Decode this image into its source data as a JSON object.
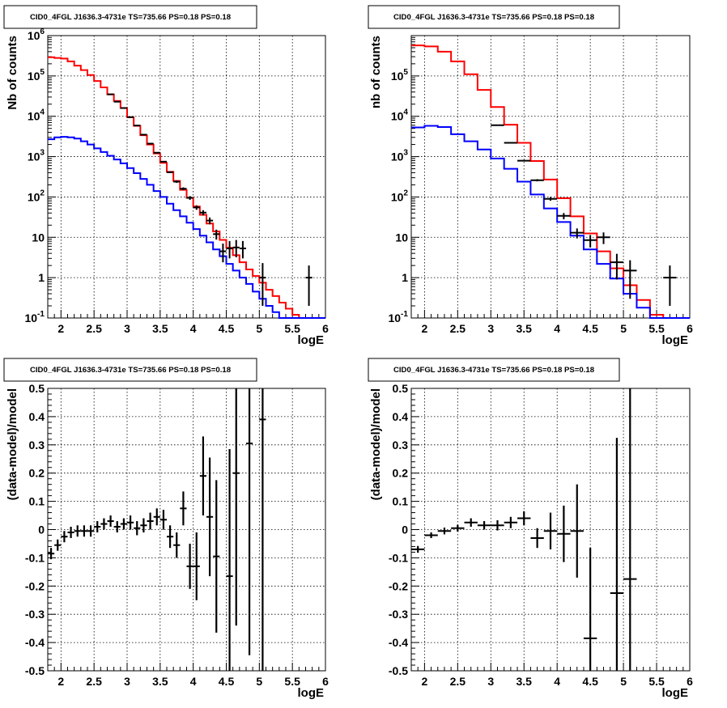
{
  "chart_data": [
    {
      "type": "histogram",
      "title": "CID0_4FGL J1636.3-4731e TS=735.66 PS=0.18 PS=0.18",
      "xlabel": "logE",
      "ylabel": "Nb of counts",
      "xlim": [
        1.8,
        6.0
      ],
      "ylim": [
        0.1,
        1000000
      ],
      "y_scale": "log",
      "grid": true,
      "x_ticks": [
        "2",
        "2.5",
        "3",
        "3.5",
        "4",
        "4.5",
        "5",
        "5.5",
        "6"
      ],
      "y_ticks": [
        "10^-1",
        "1",
        "10",
        "10^2",
        "10^3",
        "10^4",
        "10^5",
        "10^6"
      ],
      "bin_width": 0.1,
      "series": [
        {
          "color": "#ff0000",
          "x_edges": [
            1.8,
            1.9,
            2.0,
            2.1,
            2.2,
            2.3,
            2.4,
            2.5,
            2.6,
            2.7,
            2.8,
            2.9,
            3.0,
            3.1,
            3.2,
            3.3,
            3.4,
            3.5,
            3.6,
            3.7,
            3.8,
            3.9,
            4.0,
            4.1,
            4.2,
            4.3,
            4.4,
            4.5,
            4.6,
            4.7,
            4.8,
            4.9,
            5.0,
            5.1,
            5.2,
            5.3,
            5.4,
            5.5,
            5.6,
            5.7,
            5.8,
            5.9,
            6.0
          ],
          "values": [
            290000,
            280000,
            270000,
            230000,
            180000,
            140000,
            105000,
            75000,
            52000,
            35000,
            24000,
            16000,
            9500,
            5800,
            3400,
            2000,
            1200,
            700,
            420,
            250,
            150,
            95,
            58,
            36,
            22,
            14,
            8.6,
            5.5,
            3.6,
            2.4,
            1.6,
            1.1,
            0.75,
            0.5,
            0.35,
            0.24,
            0.17,
            0.12,
            0.1,
            0.1,
            0.1,
            0.1
          ]
        },
        {
          "color": "#0000ff",
          "x_edges": [
            1.8,
            1.9,
            2.0,
            2.1,
            2.2,
            2.3,
            2.4,
            2.5,
            2.6,
            2.7,
            2.8,
            2.9,
            3.0,
            3.1,
            3.2,
            3.3,
            3.4,
            3.5,
            3.6,
            3.7,
            3.8,
            3.9,
            4.0,
            4.1,
            4.2,
            4.3,
            4.4,
            4.5,
            4.6,
            4.7,
            4.8,
            4.9,
            5.0,
            5.1,
            5.2,
            5.3,
            5.4,
            5.5,
            5.6,
            5.7,
            5.8,
            5.9,
            6.0
          ],
          "values": [
            2700,
            3000,
            3100,
            3000,
            2800,
            2400,
            2000,
            1600,
            1300,
            1050,
            850,
            680,
            520,
            390,
            280,
            200,
            140,
            100,
            68,
            47,
            33,
            23,
            16,
            11,
            7.5,
            5.0,
            3.4,
            2.2,
            1.5,
            1.0,
            0.7,
            0.45,
            0.3,
            0.2,
            0.14,
            0.1,
            0.1,
            0.1,
            0.1,
            0.1,
            0.1,
            0.1
          ]
        },
        {
          "type": "points",
          "color": "#000000",
          "x": [
            2.75,
            2.85,
            2.95,
            3.05,
            3.15,
            3.25,
            3.35,
            3.45,
            3.55,
            3.65,
            3.75,
            3.85,
            3.95,
            4.05,
            4.15,
            4.25,
            4.35,
            4.45,
            4.55,
            4.65,
            4.75,
            5.05,
            5.75
          ],
          "y": [
            35000,
            23000,
            16000,
            9500,
            5900,
            3500,
            2100,
            1250,
            750,
            410,
            240,
            160,
            95,
            55,
            41,
            26,
            12,
            4.5,
            5.3,
            5.6,
            5.3,
            1.0,
            1.0
          ],
          "y_err_low": [
            200,
            160,
            130,
            100,
            80,
            60,
            45,
            35,
            27,
            20,
            16,
            13,
            10,
            7,
            6,
            5,
            3.2,
            2.1,
            2.3,
            2.4,
            2.3,
            0.8,
            0.8
          ],
          "y_err_high": [
            200,
            160,
            130,
            100,
            80,
            60,
            45,
            35,
            27,
            20,
            16,
            13,
            10,
            7,
            6,
            5,
            3.5,
            2.5,
            2.8,
            3.0,
            2.8,
            1.3,
            1.0
          ]
        }
      ]
    },
    {
      "type": "histogram",
      "title": "CID0_4FGL J1636.3-4731e TS=735.66 PS=0.18 PS=0.18",
      "xlabel": "logE",
      "ylabel": "nb of counts",
      "xlim": [
        1.8,
        6.0
      ],
      "ylim": [
        0.1,
        1000000
      ],
      "y_scale": "log",
      "grid": true,
      "x_ticks": [
        "2",
        "2.5",
        "3",
        "3.5",
        "4",
        "4.5",
        "5",
        "5.5",
        "6"
      ],
      "y_ticks": [
        "10^-1",
        "1",
        "10",
        "10^2",
        "10^3",
        "10^4",
        "10^5"
      ],
      "bin_width": 0.2,
      "series": [
        {
          "color": "#ff0000",
          "x_edges": [
            1.8,
            2.0,
            2.2,
            2.4,
            2.6,
            2.8,
            3.0,
            3.2,
            3.4,
            3.6,
            3.8,
            4.0,
            4.2,
            4.4,
            4.6,
            4.8,
            5.0,
            5.2,
            5.4,
            5.6,
            5.8,
            6.0
          ],
          "values": [
            570000,
            540000,
            400000,
            230000,
            110000,
            45000,
            17000,
            6200,
            2200,
            780,
            270,
            93,
            33,
            12.5,
            4.5,
            1.7,
            0.65,
            0.28,
            0.12,
            0.1,
            0.1
          ]
        },
        {
          "color": "#0000ff",
          "x_edges": [
            1.8,
            2.0,
            2.2,
            2.4,
            2.6,
            2.8,
            3.0,
            3.2,
            3.4,
            3.6,
            3.8,
            4.0,
            4.2,
            4.4,
            4.6,
            4.8,
            5.0,
            5.2,
            5.4,
            5.6,
            5.8,
            6.0
          ],
          "values": [
            5300,
            5800,
            5400,
            3600,
            2400,
            1500,
            900,
            500,
            240,
            115,
            52,
            24,
            11,
            5.0,
            2.2,
            0.95,
            0.4,
            0.18,
            0.1,
            0.1,
            0.1
          ]
        },
        {
          "type": "points",
          "color": "#000000",
          "x": [
            3.1,
            3.3,
            3.5,
            3.7,
            3.9,
            4.1,
            4.3,
            4.5,
            4.7,
            4.9,
            5.1,
            5.7
          ],
          "y": [
            6000,
            2200,
            790,
            260,
            90,
            34,
            13,
            8.5,
            10,
            2.4,
            1.5,
            1.0
          ],
          "y_err_low": [
            80,
            47,
            28,
            16,
            9,
            6,
            3.6,
            2.9,
            3.2,
            1.5,
            1.2,
            0.8
          ],
          "y_err_high": [
            80,
            47,
            28,
            16,
            9,
            6,
            3.6,
            2.9,
            3.2,
            1.5,
            1.2,
            1.0
          ]
        }
      ]
    },
    {
      "type": "scatter",
      "title": "CID0_4FGL J1636.3-4731e TS=735.66 PS=0.18 PS=0.18",
      "xlabel": "logE",
      "ylabel": "(data-model)/model",
      "xlim": [
        1.8,
        6.0
      ],
      "ylim": [
        -0.5,
        0.5
      ],
      "grid": true,
      "x_ticks": [
        "2",
        "2.5",
        "3",
        "3.5",
        "4",
        "4.5",
        "5",
        "5.5",
        "6"
      ],
      "y_ticks": [
        "-0.5",
        "-0.4",
        "-0.3",
        "-0.2",
        "-0.1",
        "0",
        "0.1",
        "0.2",
        "0.3",
        "0.4",
        "0.5"
      ],
      "x_halfwidth": 0.05,
      "x": [
        1.85,
        1.95,
        2.05,
        2.15,
        2.25,
        2.35,
        2.45,
        2.55,
        2.65,
        2.75,
        2.85,
        2.95,
        3.05,
        3.15,
        3.25,
        3.35,
        3.45,
        3.55,
        3.65,
        3.75,
        3.85,
        3.95,
        4.05,
        4.15,
        4.25,
        4.35,
        4.55,
        4.65,
        4.85,
        5.05
      ],
      "y": [
        -0.085,
        -0.055,
        -0.025,
        -0.01,
        -0.005,
        -0.005,
        -0.005,
        0.01,
        0.02,
        0.03,
        0.01,
        0.02,
        0.025,
        0.005,
        0.015,
        0.03,
        0.045,
        0.035,
        -0.025,
        -0.055,
        0.075,
        -0.13,
        -0.13,
        0.19,
        0.045,
        -0.095,
        -0.165,
        0.2,
        0.305,
        0.39
      ],
      "y_err": [
        0.02,
        0.02,
        0.02,
        0.02,
        0.02,
        0.02,
        0.02,
        0.02,
        0.02,
        0.02,
        0.02,
        0.02,
        0.025,
        0.025,
        0.025,
        0.03,
        0.03,
        0.035,
        0.04,
        0.045,
        0.06,
        0.08,
        0.12,
        0.14,
        0.21,
        0.27,
        0.45,
        0.54,
        0.75,
        0.95
      ]
    },
    {
      "type": "scatter",
      "title": "CID0_4FGL J1636.3-4731e TS=735.66 PS=0.18 PS=0.18",
      "xlabel": "logE",
      "ylabel": "(data-model)/model",
      "xlim": [
        1.8,
        6.0
      ],
      "ylim": [
        -0.5,
        0.5
      ],
      "grid": true,
      "x_ticks": [
        "2",
        "2.5",
        "3",
        "3.5",
        "4",
        "4.5",
        "5",
        "5.5",
        "6"
      ],
      "y_ticks": [
        "-0.5",
        "-0.4",
        "-0.3",
        "-0.2",
        "-0.1",
        "0",
        "0.1",
        "0.2",
        "0.3",
        "0.4",
        "0.5"
      ],
      "x_halfwidth": 0.1,
      "x": [
        1.9,
        2.1,
        2.3,
        2.5,
        2.7,
        2.9,
        3.1,
        3.3,
        3.5,
        3.7,
        3.9,
        4.1,
        4.3,
        4.5,
        4.9,
        5.1
      ],
      "y": [
        -0.07,
        -0.02,
        -0.005,
        0.005,
        0.025,
        0.015,
        0.015,
        0.025,
        0.04,
        -0.03,
        -0.005,
        -0.015,
        -0.005,
        -0.385,
        -0.225,
        -0.175
      ],
      "y_err": [
        0.012,
        0.01,
        0.012,
        0.012,
        0.015,
        0.015,
        0.018,
        0.02,
        0.025,
        0.035,
        0.065,
        0.1,
        0.165,
        0.32,
        0.55,
        0.95
      ]
    }
  ]
}
